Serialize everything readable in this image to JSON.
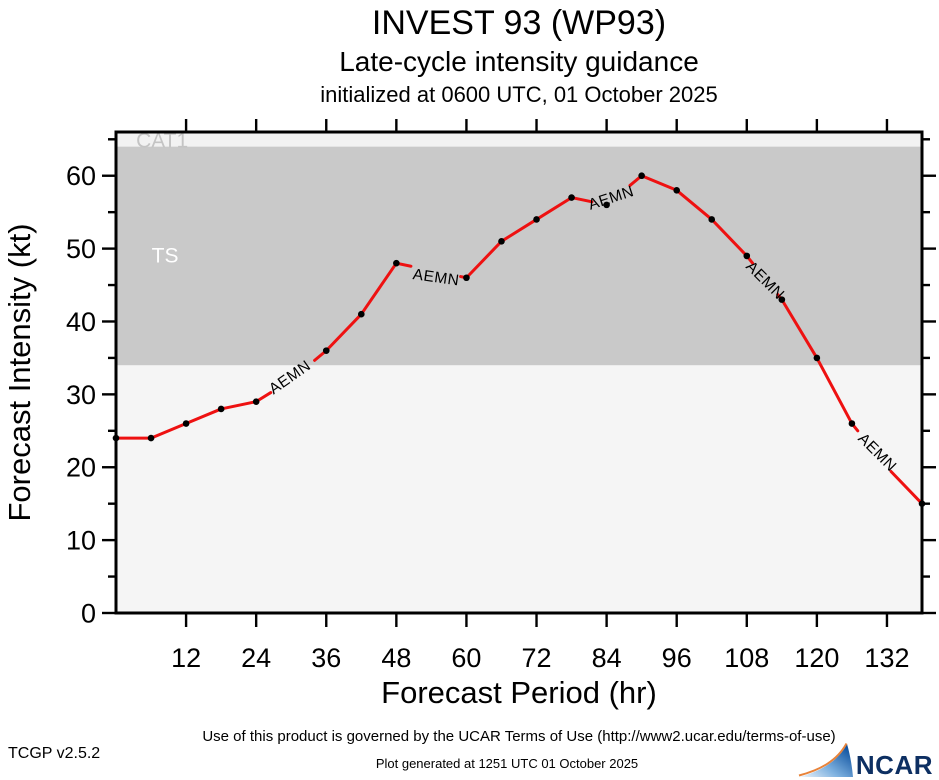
{
  "header": {
    "title": "INVEST 93 (WP93)",
    "subtitle": "Late-cycle intensity guidance",
    "init_line": "initialized at 0600 UTC, 01 October 2025"
  },
  "chart_data": {
    "type": "line",
    "title": "INVEST 93 (WP93) — Late-cycle intensity guidance",
    "xlabel": "Forecast Period (hr)",
    "ylabel": "Forecast Intensity (kt)",
    "xlim": [
      0,
      138
    ],
    "ylim": [
      0,
      66
    ],
    "x_major_ticks": [
      12,
      24,
      36,
      48,
      60,
      72,
      84,
      96,
      108,
      120,
      132
    ],
    "y_major_ticks": [
      0,
      10,
      20,
      30,
      40,
      50,
      60
    ],
    "y_minor_ticks": [
      5,
      15,
      25,
      35,
      45,
      55,
      65
    ],
    "grid": false,
    "bands": [
      {
        "name": "below-ts",
        "label": "",
        "from": 0,
        "to": 34,
        "color": "#f5f5f5"
      },
      {
        "name": "ts",
        "label": "TS",
        "from": 34,
        "to": 64,
        "color": "#c9c9c9",
        "label_color": "#ffffff",
        "label_hour": 8.4,
        "label_kt": 49
      },
      {
        "name": "cat1",
        "label": "CAT1",
        "from": 64,
        "to": 66,
        "color": "#f2f2f2",
        "label_color": "#c4c4c4",
        "label_hour": 7.9,
        "label_kt": 64.8
      }
    ],
    "series": [
      {
        "name": "AEMN",
        "color": "#ee1111",
        "marker_color": "#000000",
        "x": [
          0,
          6,
          12,
          18,
          24,
          30,
          36,
          42,
          48,
          54,
          60,
          66,
          72,
          78,
          84,
          90,
          96,
          102,
          108,
          114,
          120,
          126,
          132,
          138
        ],
        "values": [
          24,
          24,
          26,
          28,
          29,
          32,
          36,
          41,
          48,
          47,
          46,
          51,
          54,
          57,
          56,
          60,
          58,
          54,
          49,
          43,
          35,
          26,
          20,
          15
        ],
        "line_labels": [
          {
            "text": "AEMN",
            "hour": 29.8,
            "kt": 32.3,
            "rotation": -35
          },
          {
            "text": "AEMN",
            "hour": 54.8,
            "kt": 46.0,
            "rotation": 8
          },
          {
            "text": "AEMN",
            "hour": 84.8,
            "kt": 56.9,
            "rotation": -18
          },
          {
            "text": "AEMN",
            "hour": 111.1,
            "kt": 45.6,
            "rotation": 45
          },
          {
            "text": "AEMN",
            "hour": 130.3,
            "kt": 22.0,
            "rotation": 45
          }
        ],
        "label_gaps": [
          [
            26.5,
            34
          ],
          [
            50.5,
            59
          ],
          [
            81.5,
            88
          ],
          [
            109,
            113.3
          ],
          [
            127,
            132.7
          ]
        ],
        "hidden_markers": [
          30,
          54,
          132
        ]
      }
    ],
    "legend": "none"
  },
  "footer": {
    "terms": "Use of this product is governed by the UCAR Terms of Use (http://www2.ucar.edu/terms-of-use)",
    "generated": "Plot generated at 1251 UTC  01 October 2025",
    "version": "TCGP v2.5.2",
    "logo_text": "NCAR"
  },
  "colors": {
    "line": "#ee1111",
    "marker": "#000000",
    "ts_band": "#c9c9c9",
    "light_band": "#f5f5f5",
    "cat1_label": "#c4c4c4",
    "ncar_navy": "#0d2f62",
    "ncar_orange": "#e8833a"
  }
}
